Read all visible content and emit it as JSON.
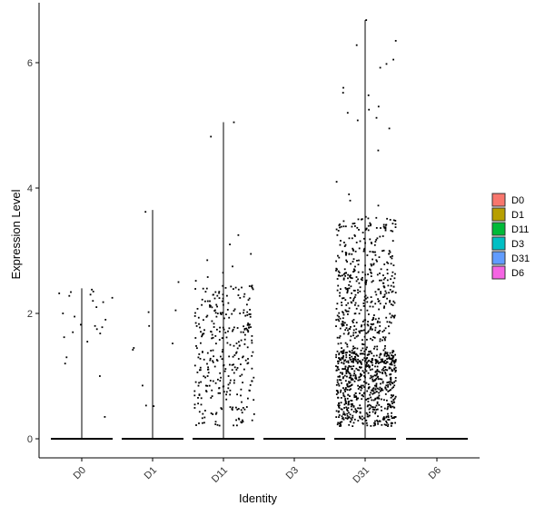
{
  "chart_data": {
    "type": "violin",
    "xlabel": "Identity",
    "ylabel": "Expression Level",
    "categories": [
      "D0",
      "D1",
      "D11",
      "D3",
      "D31",
      "D6"
    ],
    "ylim": [
      -0.35,
      6.95
    ],
    "yticks": [
      0,
      2,
      4,
      6
    ],
    "series": [
      {
        "name": "D0",
        "max": 2.4,
        "color": "#F8766D",
        "points": [
          2.38,
          2.34,
          2.3,
          2.25,
          2.35,
          2.2,
          2.0,
          1.9,
          1.8,
          1.78,
          1.75,
          1.7,
          1.68,
          1.62,
          1.55,
          1.3,
          1.2,
          1.0,
          0.35,
          2.18,
          2.32,
          1.82,
          2.1,
          1.95,
          2.28
        ]
      },
      {
        "name": "D1",
        "max": 3.65,
        "color": "#B79F00",
        "points": [
          3.62,
          2.5,
          2.05,
          2.02,
          1.8,
          1.52,
          1.45,
          1.42,
          0.85,
          0.53,
          0.52
        ]
      },
      {
        "name": "D11",
        "max": 5.05,
        "color": "#00BA38",
        "points": []
      },
      {
        "name": "D3",
        "max": 0.0,
        "color": "#00BFC4",
        "points": []
      },
      {
        "name": "D31",
        "max": 6.68,
        "color": "#619CFF",
        "points": []
      },
      {
        "name": "D6",
        "max": 0.0,
        "color": "#F564E3",
        "points": []
      }
    ],
    "legend": {
      "position": "right",
      "entries": [
        "D0",
        "D1",
        "D11",
        "D3",
        "D31",
        "D6"
      ]
    },
    "grid": false
  }
}
